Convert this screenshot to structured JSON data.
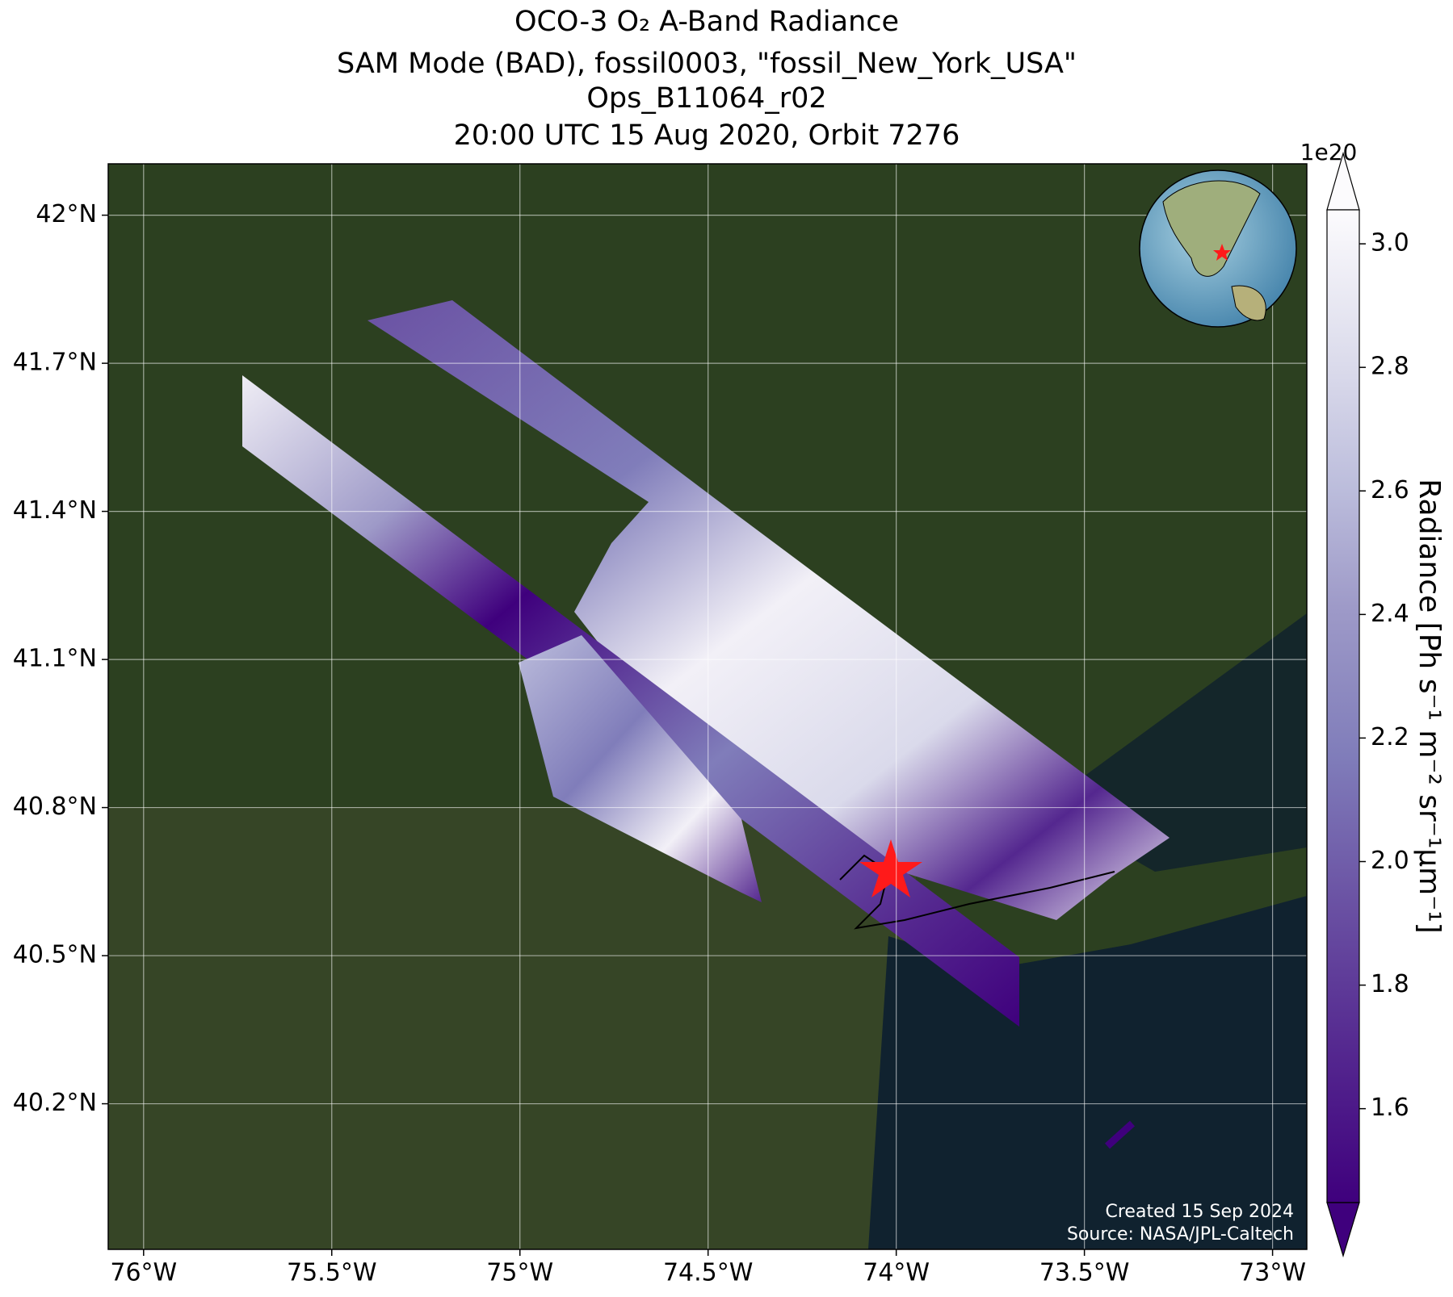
{
  "chart_data": {
    "type": "map",
    "title": "OCO-3 O₂ A-Band Radiance",
    "subtitle": [
      "SAM Mode (BAD), fossil0003, \"fossil_New_York_USA\"",
      "Ops_B11064_r02",
      "20:00 UTC 15 Aug 2020, Orbit 7276"
    ],
    "xlim": [
      -76.094,
      -72.909
    ],
    "xticks": [
      {
        "value": -76,
        "label": "76°W"
      },
      {
        "value": -75.5,
        "label": "75.5°W"
      },
      {
        "value": -75,
        "label": "75°W"
      },
      {
        "value": -74.5,
        "label": "74.5°W"
      },
      {
        "value": -74,
        "label": "74°W"
      },
      {
        "value": -73.5,
        "label": "73.5°W"
      },
      {
        "value": -73,
        "label": "73°W"
      }
    ],
    "ylim": [
      39.905,
      42.104
    ],
    "yticks": [
      {
        "value": 42,
        "label": "42°N"
      },
      {
        "value": 41.7,
        "label": "41.7°N"
      },
      {
        "value": 41.4,
        "label": "41.4°N"
      },
      {
        "value": 41.1,
        "label": "41.1°N"
      },
      {
        "value": 40.8,
        "label": "40.8°N"
      },
      {
        "value": 40.5,
        "label": "40.5°N"
      },
      {
        "value": 40.2,
        "label": "40.2°N"
      }
    ],
    "grid": true,
    "colorbar": {
      "label": "Radiance [Ph s⁻¹ m⁻² sr⁻¹μm⁻¹]",
      "multiplier": "1e20",
      "lim": [
        1.448,
        3.055
      ],
      "ticks": [
        {
          "value": 1.6,
          "label": "1.6"
        },
        {
          "value": 1.8,
          "label": "1.8"
        },
        {
          "value": 2.0,
          "label": "2.0"
        },
        {
          "value": 2.2,
          "label": "2.2"
        },
        {
          "value": 2.4,
          "label": "2.4"
        },
        {
          "value": 2.6,
          "label": "2.6"
        },
        {
          "value": 2.8,
          "label": "2.8"
        },
        {
          "value": 3.0,
          "label": "3.0"
        }
      ]
    },
    "annotations": [
      "Created 15 Sep 2024",
      "Source: NASA/JPL-Caltech"
    ]
  }
}
